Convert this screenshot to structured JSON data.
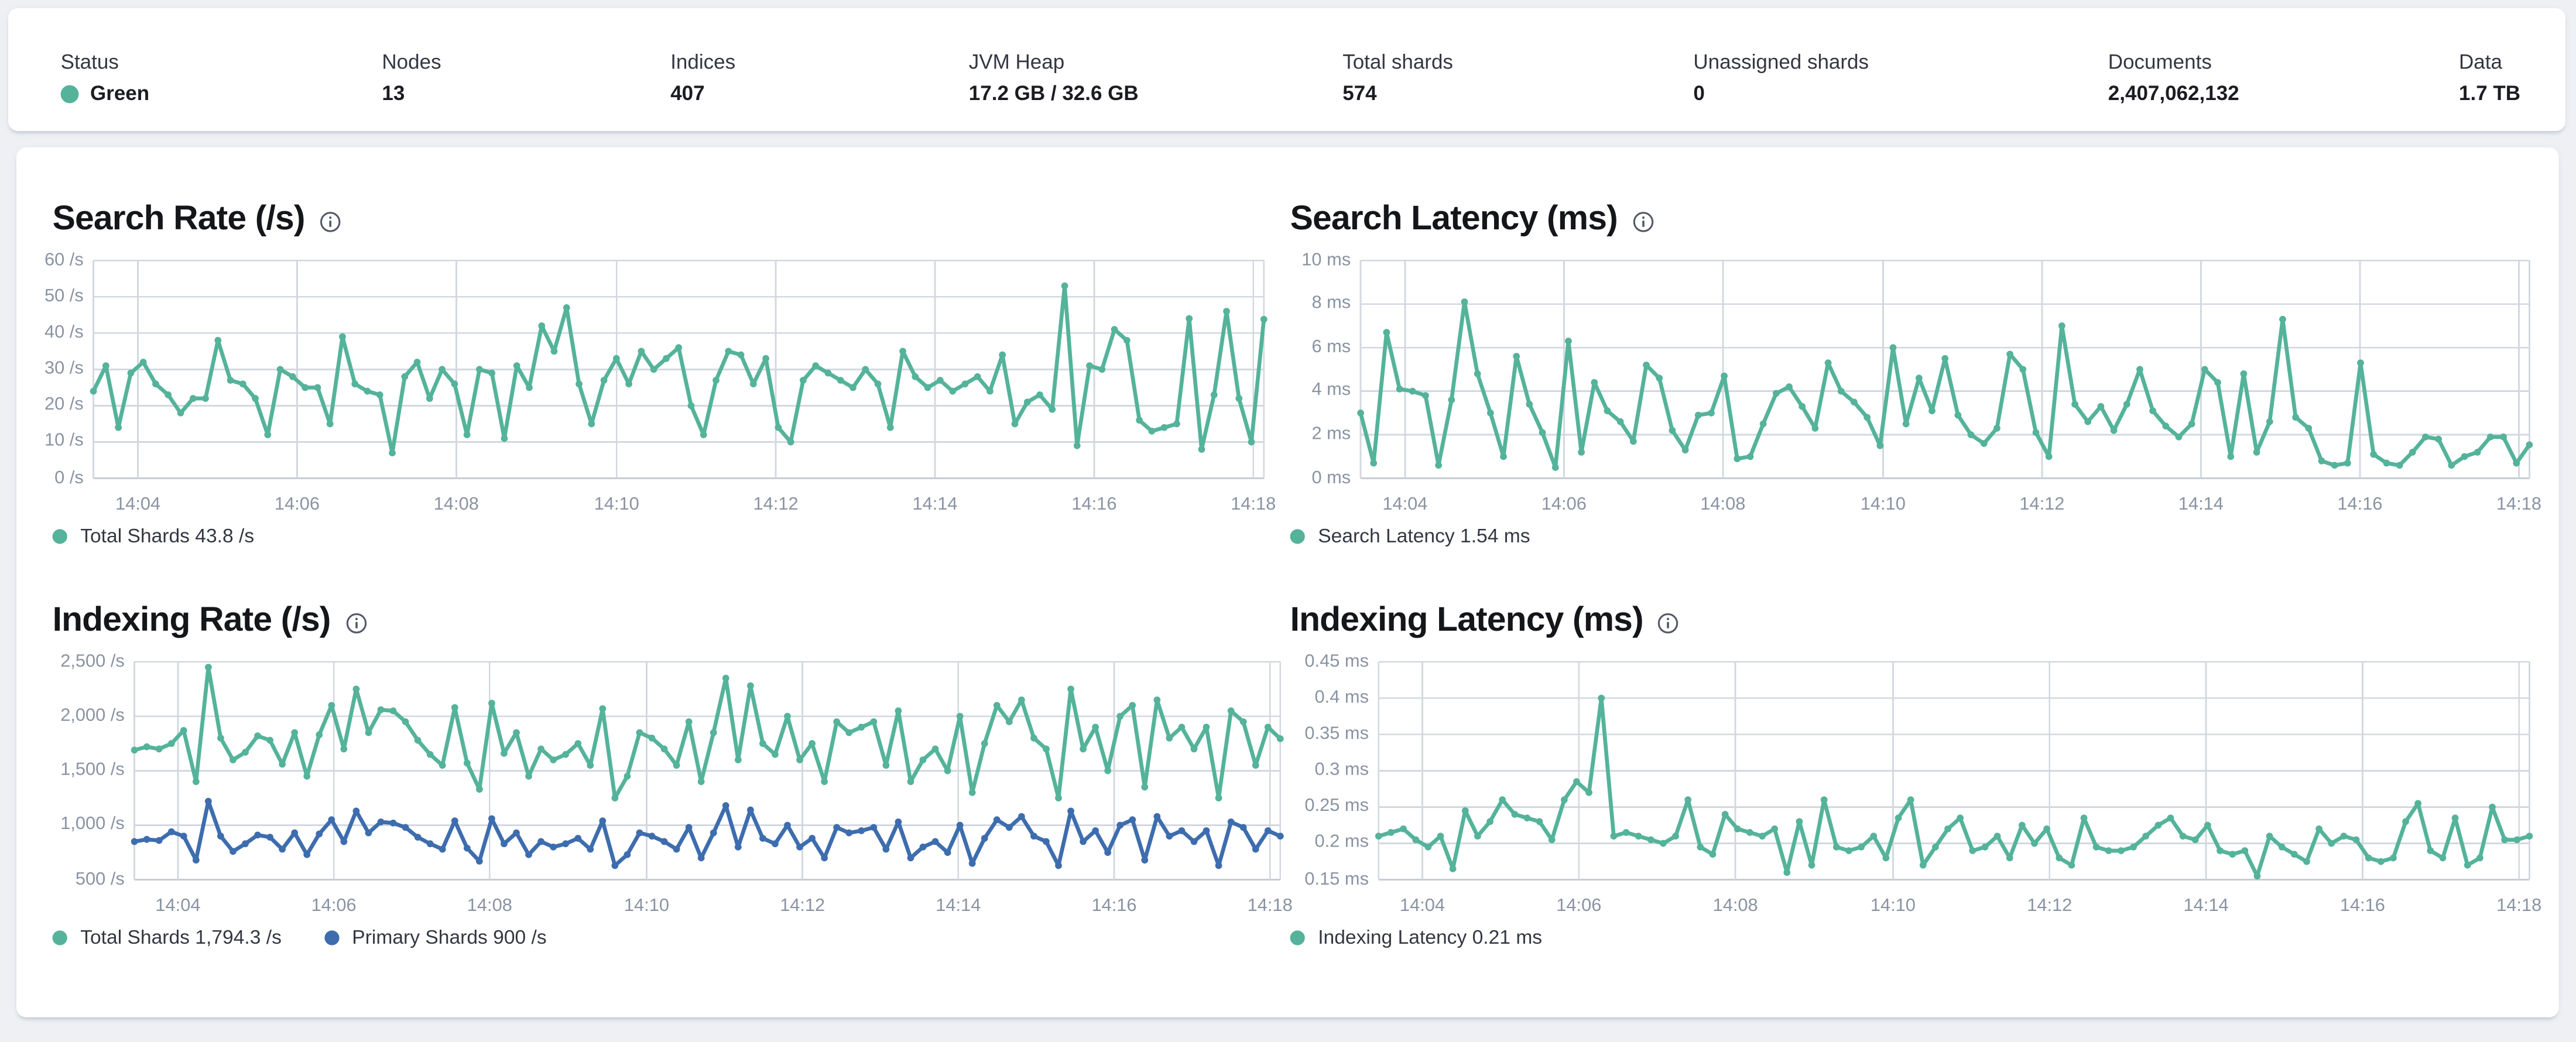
{
  "page": {
    "background": "#eef0f4"
  },
  "colors": {
    "teal": "#54b39a",
    "blue": "#3d6dae",
    "grid": "#d3d8e0",
    "axis_bottom": "#c6ccd5",
    "axis_text": "#8a93a2",
    "title_text": "#14161a"
  },
  "summary_bar": {
    "status_color": "#54b39a",
    "items": [
      {
        "label": "Status",
        "value": "Green",
        "has_dot": true
      },
      {
        "label": "Nodes",
        "value": "13"
      },
      {
        "label": "Indices",
        "value": "407"
      },
      {
        "label": "JVM Heap",
        "value": "17.2 GB / 32.6 GB"
      },
      {
        "label": "Total shards",
        "value": "574"
      },
      {
        "label": "Unassigned shards",
        "value": "0"
      },
      {
        "label": "Documents",
        "value": "2,407,062,132"
      },
      {
        "label": "Data",
        "value": "1.7 TB"
      }
    ]
  },
  "chart_data": [
    {
      "type": "line",
      "title": "Search Rate (/s)",
      "xlabel": "",
      "ylabel": "/s",
      "ylim": [
        0,
        60
      ],
      "grid": true,
      "legend_position": "bottom-left",
      "x_tick_labels": [
        "14:04",
        "14:06",
        "14:08",
        "14:10",
        "14:12",
        "14:14",
        "14:16",
        "14:18"
      ],
      "y_ticks": [
        {
          "v": 0,
          "label": "0 /s"
        },
        {
          "v": 10,
          "label": "10 /s"
        },
        {
          "v": 20,
          "label": "20 /s"
        },
        {
          "v": 30,
          "label": "30 /s"
        },
        {
          "v": 40,
          "label": "40 /s"
        },
        {
          "v": 50,
          "label": "50 /s"
        },
        {
          "v": 60,
          "label": "60 /s"
        }
      ],
      "series": [
        {
          "name": "Total Shards",
          "color": "#54b39a",
          "values": [
            24,
            31,
            14,
            29,
            32,
            26,
            23,
            18,
            22,
            22,
            38,
            27,
            26,
            22,
            12,
            30,
            28,
            25,
            25,
            15,
            39,
            26,
            24,
            23,
            7,
            28,
            32,
            22,
            30,
            26,
            12,
            30,
            29,
            11,
            31,
            25,
            42,
            35,
            47,
            26,
            15,
            27,
            33,
            26,
            35,
            30,
            33,
            36,
            20,
            12,
            27,
            35,
            34,
            26,
            33,
            14,
            10,
            27,
            31,
            29,
            27,
            25,
            30,
            26,
            14,
            35,
            28,
            25,
            27,
            24,
            26,
            28,
            24,
            34,
            15,
            21,
            23,
            19,
            53,
            9,
            31,
            30,
            41,
            38,
            16,
            13,
            14,
            15,
            44,
            8,
            23,
            46,
            22,
            10,
            43.8
          ]
        }
      ],
      "legend": [
        {
          "label": "Total Shards 43.8 /s",
          "color": "#54b39a"
        }
      ]
    },
    {
      "type": "line",
      "title": "Search Latency (ms)",
      "xlabel": "",
      "ylabel": "ms",
      "ylim": [
        0,
        10
      ],
      "grid": true,
      "legend_position": "bottom-left",
      "x_tick_labels": [
        "14:04",
        "14:06",
        "14:08",
        "14:10",
        "14:12",
        "14:14",
        "14:16",
        "14:18"
      ],
      "y_ticks": [
        {
          "v": 0,
          "label": "0 ms"
        },
        {
          "v": 2,
          "label": "2 ms"
        },
        {
          "v": 4,
          "label": "4 ms"
        },
        {
          "v": 6,
          "label": "6 ms"
        },
        {
          "v": 8,
          "label": "8 ms"
        },
        {
          "v": 10,
          "label": "10 ms"
        }
      ],
      "series": [
        {
          "name": "Search Latency",
          "color": "#54b39a",
          "values": [
            3,
            0.7,
            6.7,
            4.1,
            4,
            3.8,
            0.6,
            3.6,
            8.1,
            4.8,
            3,
            1,
            5.6,
            3.4,
            2.1,
            0.5,
            6.3,
            1.2,
            4.4,
            3.1,
            2.6,
            1.7,
            5.2,
            4.6,
            2.2,
            1.3,
            2.9,
            3,
            4.7,
            0.9,
            1,
            2.5,
            3.9,
            4.2,
            3.3,
            2.3,
            5.3,
            4,
            3.5,
            2.8,
            1.5,
            6,
            2.5,
            4.6,
            3.1,
            5.5,
            2.9,
            2,
            1.6,
            2.3,
            5.7,
            5,
            2.1,
            1,
            7,
            3.4,
            2.6,
            3.3,
            2.2,
            3.4,
            5,
            3.1,
            2.4,
            1.9,
            2.5,
            5,
            4.4,
            1,
            4.8,
            1.2,
            2.6,
            7.3,
            2.8,
            2.3,
            0.8,
            0.6,
            0.7,
            5.3,
            1.1,
            0.7,
            0.6,
            1.2,
            1.9,
            1.8,
            0.6,
            1,
            1.2,
            1.9,
            1.9,
            0.7,
            1.54
          ]
        }
      ],
      "legend": [
        {
          "label": "Search Latency 1.54 ms",
          "color": "#54b39a"
        }
      ]
    },
    {
      "type": "line",
      "title": "Indexing Rate (/s)",
      "xlabel": "",
      "ylabel": "/s",
      "ylim": [
        500,
        2500
      ],
      "grid": true,
      "legend_position": "bottom-left",
      "x_tick_labels": [
        "14:04",
        "14:06",
        "14:08",
        "14:10",
        "14:12",
        "14:14",
        "14:16",
        "14:18"
      ],
      "y_ticks": [
        {
          "v": 500,
          "label": "500 /s"
        },
        {
          "v": 1000,
          "label": "1,000 /s"
        },
        {
          "v": 1500,
          "label": "1,500 /s"
        },
        {
          "v": 2000,
          "label": "2,000 /s"
        },
        {
          "v": 2500,
          "label": "2,500 /s"
        }
      ],
      "series": [
        {
          "name": "Total Shards",
          "color": "#54b39a",
          "values": [
            1690,
            1720,
            1700,
            1750,
            1870,
            1400,
            2450,
            1800,
            1600,
            1670,
            1820,
            1780,
            1560,
            1850,
            1450,
            1830,
            2100,
            1700,
            2250,
            1850,
            2060,
            2050,
            1950,
            1780,
            1650,
            1550,
            2080,
            1570,
            1330,
            2120,
            1660,
            1850,
            1450,
            1700,
            1600,
            1650,
            1750,
            1550,
            2070,
            1250,
            1450,
            1850,
            1800,
            1700,
            1550,
            1950,
            1400,
            1850,
            2350,
            1600,
            2280,
            1750,
            1650,
            2000,
            1600,
            1750,
            1400,
            1950,
            1850,
            1900,
            1950,
            1550,
            2050,
            1400,
            1600,
            1700,
            1500,
            2000,
            1300,
            1750,
            2100,
            1950,
            2150,
            1800,
            1700,
            1250,
            2250,
            1700,
            1900,
            1500,
            2000,
            2100,
            1350,
            2150,
            1800,
            1900,
            1700,
            1900,
            1250,
            2050,
            1950,
            1550,
            1900,
            1794.3
          ]
        },
        {
          "name": "Primary Shards",
          "color": "#3d6dae",
          "values": [
            850,
            870,
            860,
            940,
            900,
            680,
            1220,
            900,
            760,
            830,
            910,
            890,
            780,
            930,
            730,
            920,
            1050,
            850,
            1130,
            930,
            1030,
            1020,
            980,
            890,
            830,
            780,
            1040,
            790,
            670,
            1060,
            830,
            930,
            730,
            850,
            800,
            830,
            880,
            780,
            1040,
            630,
            730,
            930,
            900,
            850,
            780,
            980,
            700,
            930,
            1180,
            800,
            1140,
            880,
            830,
            1000,
            800,
            880,
            700,
            980,
            930,
            950,
            980,
            780,
            1030,
            700,
            800,
            850,
            750,
            1000,
            650,
            880,
            1050,
            980,
            1080,
            900,
            850,
            630,
            1130,
            850,
            950,
            750,
            1000,
            1050,
            680,
            1080,
            900,
            950,
            850,
            950,
            630,
            1030,
            980,
            780,
            950,
            900
          ]
        }
      ],
      "legend": [
        {
          "label": "Total Shards 1,794.3 /s",
          "color": "#54b39a"
        },
        {
          "label": "Primary Shards 900 /s",
          "color": "#3d6dae"
        }
      ]
    },
    {
      "type": "line",
      "title": "Indexing Latency (ms)",
      "xlabel": "",
      "ylabel": "ms",
      "ylim": [
        0.15,
        0.45
      ],
      "grid": true,
      "legend_position": "bottom-left",
      "x_tick_labels": [
        "14:04",
        "14:06",
        "14:08",
        "14:10",
        "14:12",
        "14:14",
        "14:16",
        "14:18"
      ],
      "y_ticks": [
        {
          "v": 0.15,
          "label": "0.15 ms"
        },
        {
          "v": 0.2,
          "label": "0.2 ms"
        },
        {
          "v": 0.25,
          "label": "0.25 ms"
        },
        {
          "v": 0.3,
          "label": "0.3 ms"
        },
        {
          "v": 0.35,
          "label": "0.35 ms"
        },
        {
          "v": 0.4,
          "label": "0.4 ms"
        },
        {
          "v": 0.45,
          "label": "0.45 ms"
        }
      ],
      "series": [
        {
          "name": "Indexing Latency",
          "color": "#54b39a",
          "values": [
            0.21,
            0.215,
            0.22,
            0.205,
            0.195,
            0.21,
            0.165,
            0.245,
            0.21,
            0.23,
            0.26,
            0.24,
            0.235,
            0.23,
            0.205,
            0.26,
            0.285,
            0.27,
            0.4,
            0.21,
            0.215,
            0.21,
            0.205,
            0.2,
            0.21,
            0.26,
            0.195,
            0.185,
            0.24,
            0.22,
            0.215,
            0.21,
            0.22,
            0.16,
            0.23,
            0.17,
            0.26,
            0.195,
            0.19,
            0.195,
            0.21,
            0.18,
            0.235,
            0.26,
            0.17,
            0.195,
            0.22,
            0.235,
            0.19,
            0.195,
            0.21,
            0.18,
            0.225,
            0.2,
            0.22,
            0.18,
            0.17,
            0.235,
            0.195,
            0.19,
            0.19,
            0.195,
            0.21,
            0.225,
            0.235,
            0.21,
            0.205,
            0.225,
            0.19,
            0.185,
            0.19,
            0.155,
            0.21,
            0.195,
            0.185,
            0.175,
            0.22,
            0.2,
            0.21,
            0.205,
            0.18,
            0.175,
            0.18,
            0.23,
            0.255,
            0.19,
            0.18,
            0.235,
            0.17,
            0.18,
            0.25,
            0.205,
            0.205,
            0.21
          ]
        }
      ],
      "legend": [
        {
          "label": "Indexing Latency 0.21 ms",
          "color": "#54b39a"
        }
      ]
    }
  ]
}
